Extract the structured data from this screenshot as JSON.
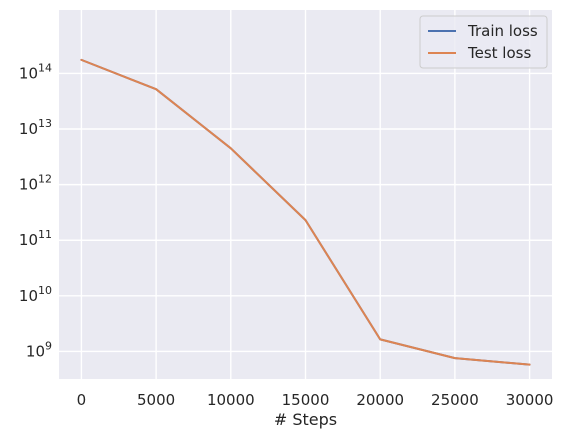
{
  "chart_data": {
    "type": "line",
    "xlabel": "# Steps",
    "ylabel": "",
    "yscale": "log",
    "xlim": [
      -1500,
      31500
    ],
    "ylim": [
      320000000.0,
      1380000000000000.0
    ],
    "xticks": [
      0,
      5000,
      10000,
      15000,
      20000,
      25000,
      30000
    ],
    "xtick_labels": [
      "0",
      "5000",
      "10000",
      "15000",
      "20000",
      "25000",
      "30000"
    ],
    "yticks": [
      1000000000.0,
      10000000000.0,
      100000000000.0,
      1000000000000.0,
      10000000000000.0,
      100000000000000.0
    ],
    "ytick_labels": [
      {
        "base": "10",
        "exp": "9"
      },
      {
        "base": "10",
        "exp": "10"
      },
      {
        "base": "10",
        "exp": "11"
      },
      {
        "base": "10",
        "exp": "12"
      },
      {
        "base": "10",
        "exp": "13"
      },
      {
        "base": "10",
        "exp": "14"
      }
    ],
    "grid": true,
    "legend_position": "top-right",
    "x": [
      0,
      5000,
      10000,
      15000,
      20000,
      25000,
      30000
    ],
    "series": [
      {
        "name": "Train loss",
        "color": "#4c72b0",
        "values": [
          175000000000000.0,
          52000000000000.0,
          4500000000000.0,
          230000000000.0,
          1650000000.0,
          760000000.0,
          580000000.0
        ]
      },
      {
        "name": "Test loss",
        "color": "#dd8452",
        "values": [
          175000000000000.0,
          52000000000000.0,
          4500000000000.0,
          230000000000.0,
          1650000000.0,
          760000000.0,
          580000000.0
        ]
      }
    ]
  }
}
